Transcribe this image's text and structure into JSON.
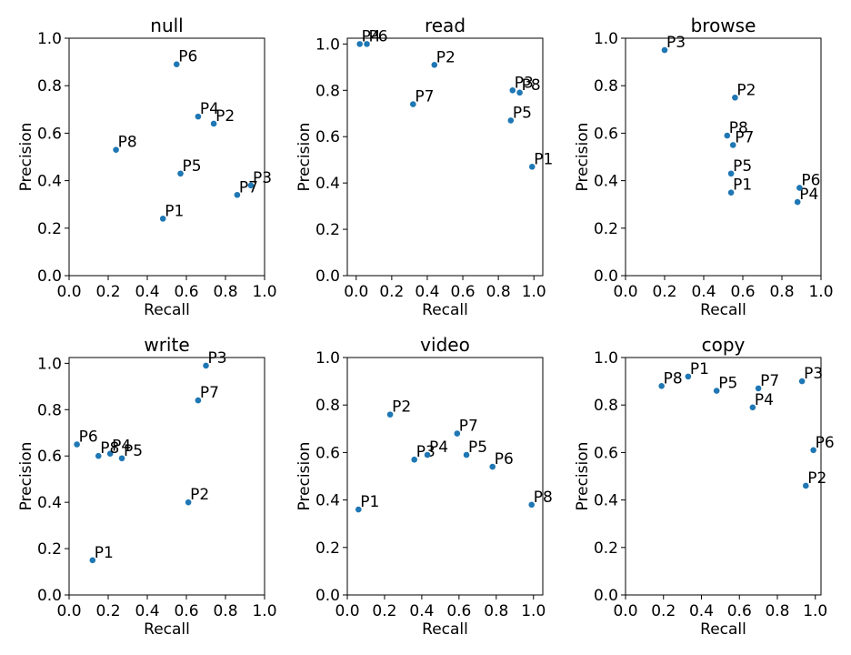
{
  "chart_data": [
    {
      "type": "scatter",
      "title": "null",
      "xlabel": "Recall",
      "ylabel": "Precision",
      "xlim": [
        0.0,
        1.0
      ],
      "ylim": [
        0.0,
        1.0
      ],
      "xticks": [
        "0.0",
        "0.2",
        "0.4",
        "0.6",
        "0.8",
        "1.0"
      ],
      "yticks": [
        "0.0",
        "0.2",
        "0.4",
        "0.6",
        "0.8",
        "1.0"
      ],
      "points": [
        {
          "label": "P1",
          "x": 0.48,
          "y": 0.24
        },
        {
          "label": "P2",
          "x": 0.74,
          "y": 0.64
        },
        {
          "label": "P3",
          "x": 0.93,
          "y": 0.38
        },
        {
          "label": "P4",
          "x": 0.66,
          "y": 0.67
        },
        {
          "label": "P5",
          "x": 0.57,
          "y": 0.43
        },
        {
          "label": "P6",
          "x": 0.55,
          "y": 0.89
        },
        {
          "label": "P7",
          "x": 0.86,
          "y": 0.34
        },
        {
          "label": "P8",
          "x": 0.24,
          "y": 0.53
        }
      ]
    },
    {
      "type": "scatter",
      "title": "read",
      "xlabel": "Recall",
      "ylabel": "Precision",
      "xlim": [
        -0.05,
        1.05
      ],
      "ylim": [
        0.0,
        1.025
      ],
      "xticks": [
        "0.0",
        "0.2",
        "0.4",
        "0.6",
        "0.8",
        "1.0"
      ],
      "yticks": [
        "0.0",
        "0.2",
        "0.4",
        "0.6",
        "0.8",
        "1.0"
      ],
      "points": [
        {
          "label": "P1",
          "x": 0.99,
          "y": 0.47
        },
        {
          "label": "P2",
          "x": 0.44,
          "y": 0.91
        },
        {
          "label": "P3",
          "x": 0.88,
          "y": 0.8
        },
        {
          "label": "P4",
          "x": 0.02,
          "y": 1.0
        },
        {
          "label": "P5",
          "x": 0.87,
          "y": 0.67
        },
        {
          "label": "P6",
          "x": 0.06,
          "y": 1.0
        },
        {
          "label": "P7",
          "x": 0.32,
          "y": 0.74
        },
        {
          "label": "P8",
          "x": 0.92,
          "y": 0.79
        }
      ]
    },
    {
      "type": "scatter",
      "title": "browse",
      "xlabel": "Recall",
      "ylabel": "Precision",
      "xlim": [
        0.0,
        1.0
      ],
      "ylim": [
        0.0,
        1.0
      ],
      "xticks": [
        "0.0",
        "0.2",
        "0.4",
        "0.6",
        "0.8",
        "1.0"
      ],
      "yticks": [
        "0.0",
        "0.2",
        "0.4",
        "0.6",
        "0.8",
        "1.0"
      ],
      "points": [
        {
          "label": "P1",
          "x": 0.54,
          "y": 0.35
        },
        {
          "label": "P2",
          "x": 0.56,
          "y": 0.75
        },
        {
          "label": "P3",
          "x": 0.2,
          "y": 0.95
        },
        {
          "label": "P4",
          "x": 0.88,
          "y": 0.31
        },
        {
          "label": "P5",
          "x": 0.54,
          "y": 0.43
        },
        {
          "label": "P6",
          "x": 0.89,
          "y": 0.37
        },
        {
          "label": "P7",
          "x": 0.55,
          "y": 0.55
        },
        {
          "label": "P8",
          "x": 0.52,
          "y": 0.59
        }
      ]
    },
    {
      "type": "scatter",
      "title": "write",
      "xlabel": "Recall",
      "ylabel": "Precision",
      "xlim": [
        0.0,
        1.0
      ],
      "ylim": [
        0.0,
        1.025
      ],
      "xticks": [
        "0.0",
        "0.2",
        "0.4",
        "0.6",
        "0.8",
        "1.0"
      ],
      "yticks": [
        "0.0",
        "0.2",
        "0.4",
        "0.6",
        "0.8",
        "1.0"
      ],
      "points": [
        {
          "label": "P1",
          "x": 0.12,
          "y": 0.15
        },
        {
          "label": "P2",
          "x": 0.61,
          "y": 0.4
        },
        {
          "label": "P3",
          "x": 0.7,
          "y": 0.99
        },
        {
          "label": "P4",
          "x": 0.21,
          "y": 0.61
        },
        {
          "label": "P5",
          "x": 0.27,
          "y": 0.59
        },
        {
          "label": "P6",
          "x": 0.04,
          "y": 0.65
        },
        {
          "label": "P7",
          "x": 0.66,
          "y": 0.84
        },
        {
          "label": "P8",
          "x": 0.15,
          "y": 0.6
        }
      ]
    },
    {
      "type": "scatter",
      "title": "video",
      "xlabel": "Recall",
      "ylabel": "Precision",
      "xlim": [
        0.0,
        1.05
      ],
      "ylim": [
        0.0,
        1.0
      ],
      "xticks": [
        "0.0",
        "0.2",
        "0.4",
        "0.6",
        "0.8",
        "1.0"
      ],
      "yticks": [
        "0.0",
        "0.2",
        "0.4",
        "0.6",
        "0.8",
        "1.0"
      ],
      "points": [
        {
          "label": "P1",
          "x": 0.06,
          "y": 0.36
        },
        {
          "label": "P2",
          "x": 0.23,
          "y": 0.76
        },
        {
          "label": "P3",
          "x": 0.36,
          "y": 0.57
        },
        {
          "label": "P4",
          "x": 0.43,
          "y": 0.59
        },
        {
          "label": "P5",
          "x": 0.64,
          "y": 0.59
        },
        {
          "label": "P6",
          "x": 0.78,
          "y": 0.54
        },
        {
          "label": "P7",
          "x": 0.59,
          "y": 0.68
        },
        {
          "label": "P8",
          "x": 0.99,
          "y": 0.38
        }
      ]
    },
    {
      "type": "scatter",
      "title": "copy",
      "xlabel": "Recall",
      "ylabel": "Precision",
      "xlim": [
        0.0,
        1.03
      ],
      "ylim": [
        0.0,
        1.0
      ],
      "xticks": [
        "0.0",
        "0.2",
        "0.4",
        "0.6",
        "0.8",
        "1.0"
      ],
      "yticks": [
        "0.0",
        "0.2",
        "0.4",
        "0.6",
        "0.8",
        "1.0"
      ],
      "points": [
        {
          "label": "P1",
          "x": 0.33,
          "y": 0.92
        },
        {
          "label": "P2",
          "x": 0.95,
          "y": 0.46
        },
        {
          "label": "P3",
          "x": 0.93,
          "y": 0.9
        },
        {
          "label": "P4",
          "x": 0.67,
          "y": 0.79
        },
        {
          "label": "P5",
          "x": 0.48,
          "y": 0.86
        },
        {
          "label": "P6",
          "x": 0.99,
          "y": 0.61
        },
        {
          "label": "P7",
          "x": 0.7,
          "y": 0.87
        },
        {
          "label": "P8",
          "x": 0.19,
          "y": 0.88
        }
      ]
    }
  ],
  "colors": {
    "marker": "#1f77b4",
    "axis": "#000000",
    "background": "#ffffff"
  }
}
